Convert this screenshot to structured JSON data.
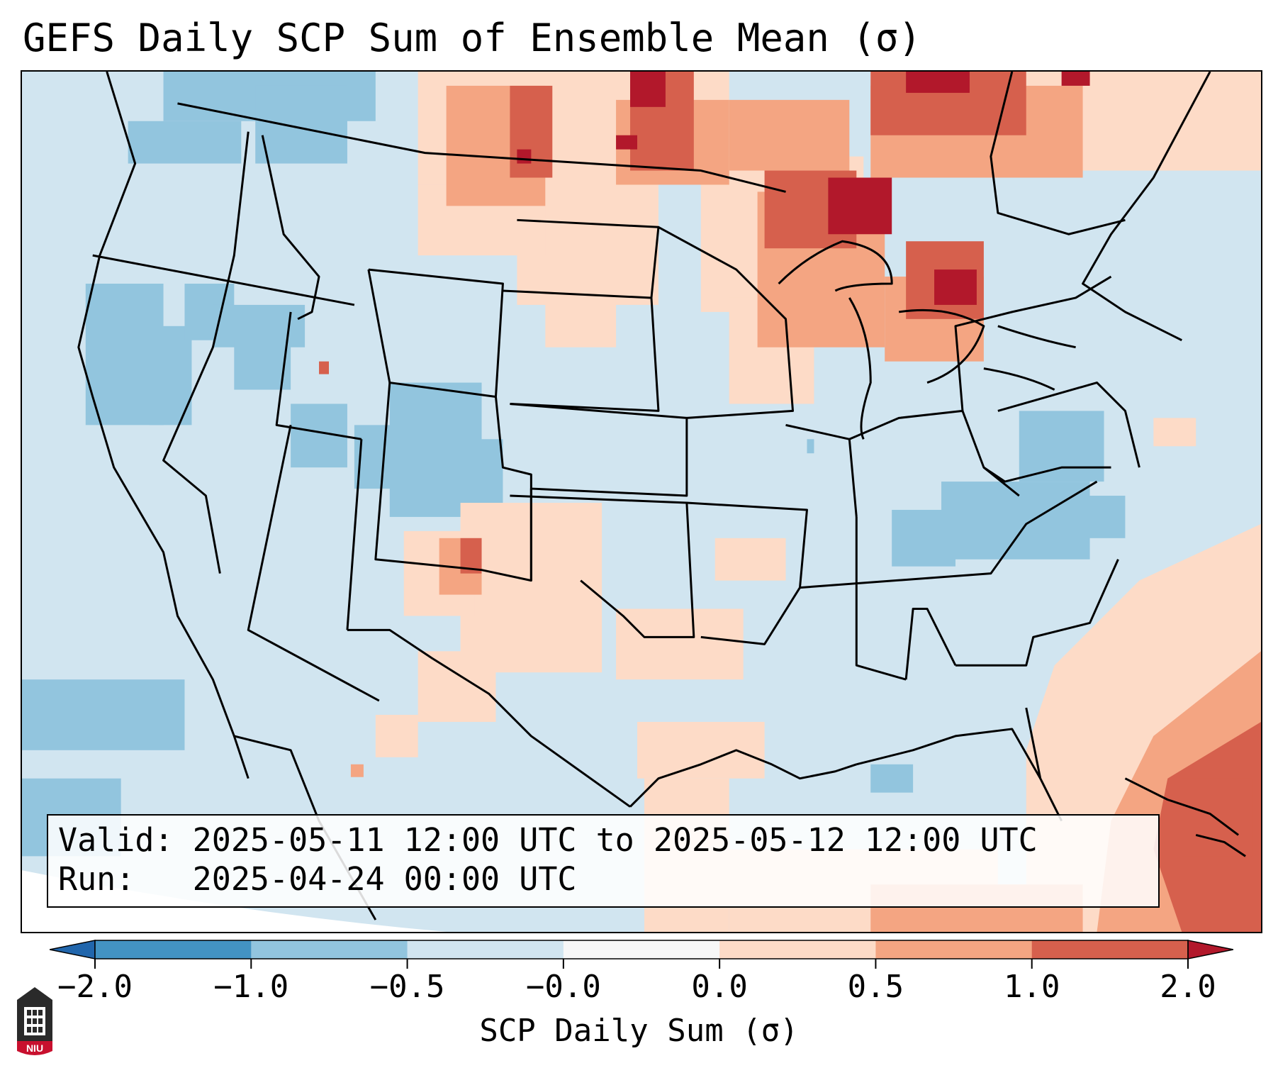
{
  "title": "GEFS Daily SCP Sum of Ensemble Mean (σ)",
  "info": {
    "valid_label": "Valid:",
    "valid_value": "2025-05-11 12:00 UTC to 2025-05-12 12:00 UTC",
    "run_label": "Run:",
    "run_value": "2025-04-24 00:00 UTC"
  },
  "colorbar": {
    "label": "SCP Daily Sum (σ)",
    "ticks": [
      "−2.0",
      "−1.0",
      "−0.5",
      "−0.0",
      "0.0",
      "0.5",
      "1.0",
      "2.0"
    ],
    "colors": [
      "#4393c3",
      "#92c5de",
      "#d1e5f0",
      "#f7f7f7",
      "#fddbc7",
      "#f4a582",
      "#d6604d"
    ],
    "under_color": "#2166ac",
    "over_color": "#b2182b"
  },
  "logo": {
    "text": "NIU"
  }
}
